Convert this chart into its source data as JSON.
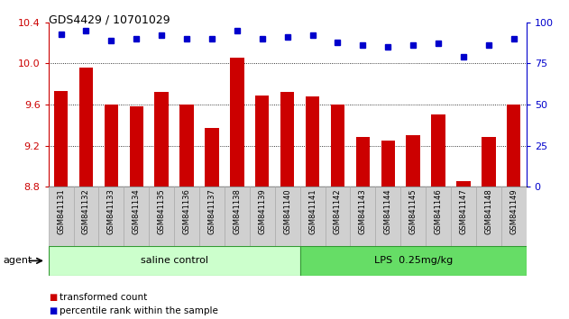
{
  "title": "GDS4429 / 10701029",
  "samples": [
    "GSM841131",
    "GSM841132",
    "GSM841133",
    "GSM841134",
    "GSM841135",
    "GSM841136",
    "GSM841137",
    "GSM841138",
    "GSM841139",
    "GSM841140",
    "GSM841141",
    "GSM841142",
    "GSM841143",
    "GSM841144",
    "GSM841145",
    "GSM841146",
    "GSM841147",
    "GSM841148",
    "GSM841149"
  ],
  "bar_values": [
    9.73,
    9.96,
    9.6,
    9.58,
    9.72,
    9.6,
    9.37,
    10.06,
    9.69,
    9.72,
    9.68,
    9.6,
    9.28,
    9.25,
    9.3,
    9.5,
    8.85,
    9.28,
    9.6
  ],
  "dot_values": [
    93,
    95,
    89,
    90,
    92,
    90,
    90,
    95,
    90,
    91,
    92,
    88,
    86,
    85,
    86,
    87,
    79,
    86,
    90
  ],
  "ylim_left": [
    8.8,
    10.4
  ],
  "ylim_right": [
    0,
    100
  ],
  "bar_color": "#cc0000",
  "dot_color": "#0000cc",
  "saline_count": 10,
  "group1_label": "saline control",
  "group2_label": "LPS  0.25mg/kg",
  "agent_label": "agent",
  "legend_bar": "transformed count",
  "legend_dot": "percentile rank within the sample",
  "yticks_left": [
    8.8,
    9.2,
    9.6,
    10.0,
    10.4
  ],
  "yticks_right": [
    0,
    25,
    50,
    75,
    100
  ],
  "grid_vals": [
    9.2,
    9.6,
    10.0
  ],
  "bar_base": 8.8,
  "saline_facecolor": "#ccffcc",
  "lps_facecolor": "#66dd66",
  "group_edgecolor": "#339933",
  "sample_facecolor": "#d0d0d0",
  "sample_edgecolor": "#aaaaaa"
}
